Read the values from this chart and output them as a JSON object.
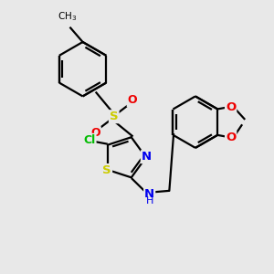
{
  "bg_color": "#e8e8e8",
  "bond_color": "#000000",
  "S_color": "#cccc00",
  "N_color": "#0000ee",
  "O_color": "#ee0000",
  "Cl_color": "#00bb00",
  "lw": 1.6,
  "fig_size": [
    3.0,
    3.0
  ],
  "dpi": 100,
  "xlim": [
    0,
    10
  ],
  "ylim": [
    0,
    10
  ]
}
